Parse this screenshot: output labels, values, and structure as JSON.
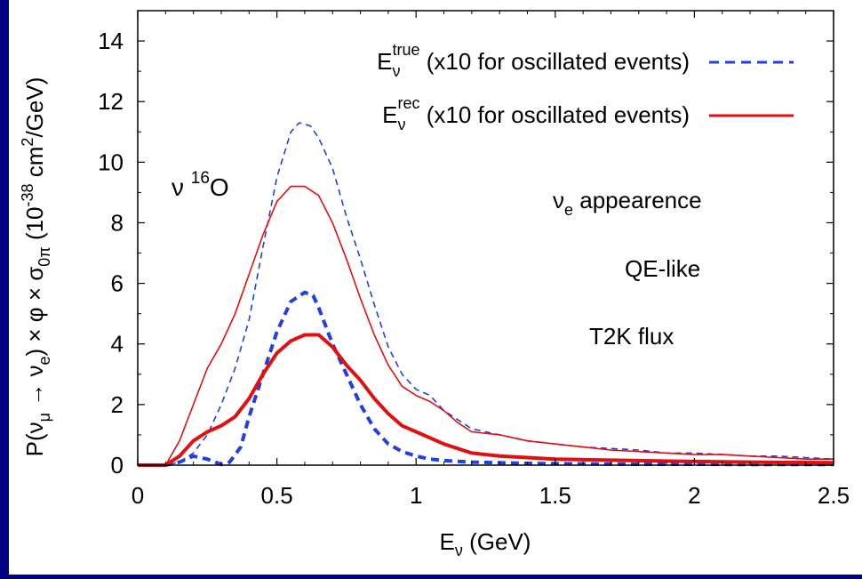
{
  "chart_data": {
    "type": "line",
    "title": "",
    "xlabel_main": "E",
    "xlabel_sub": "ν",
    "xlabel_unit": " (GeV)",
    "ylabel_parts": [
      "P(ν",
      "μ",
      " → ν",
      "e",
      ") × φ × σ",
      "0π",
      " (10",
      "-38",
      " cm",
      "2",
      "/GeV)"
    ],
    "xlim": [
      0,
      2.5
    ],
    "ylim": [
      0,
      15
    ],
    "xticks": [
      0,
      0.5,
      1,
      1.5,
      2,
      2.5
    ],
    "xtick_labels": [
      "0",
      "0.5",
      "1",
      "1.5",
      "2",
      "2.5"
    ],
    "yticks": [
      0,
      2,
      4,
      6,
      8,
      10,
      12,
      14
    ],
    "ytick_labels": [
      "0",
      "2",
      "4",
      "6",
      "8",
      "10",
      "12",
      "14"
    ],
    "grid": false,
    "legend_position": "top-right",
    "legend": [
      {
        "main": "E",
        "sub": "ν",
        "sup": "true",
        "text": " (x10 for oscillated events)",
        "style": "dashed",
        "color": "#2040e0"
      },
      {
        "main": "E",
        "sub": "ν",
        "sup": "rec",
        "text": " (x10 for oscillated events)",
        "style": "solid",
        "color": "#e01010"
      }
    ],
    "annotations": {
      "target": {
        "base": "ν ",
        "sup": "16",
        "rest": "O"
      },
      "appearance": {
        "base": "ν",
        "sub": "e",
        "rest": " appearence"
      },
      "qe": "QE-like",
      "flux": "T2K flux"
    },
    "series": [
      {
        "name": "E_ν^true (x10 for oscillated events)",
        "color": "#2040e0",
        "dash": "dashed",
        "weight": "thin",
        "x": [
          0,
          0.1,
          0.15,
          0.2,
          0.25,
          0.3,
          0.35,
          0.4,
          0.45,
          0.5,
          0.55,
          0.58,
          0.62,
          0.65,
          0.7,
          0.75,
          0.8,
          0.85,
          0.9,
          0.95,
          1.0,
          1.05,
          1.1,
          1.15,
          1.2,
          1.3,
          1.4,
          1.5,
          1.6,
          1.7,
          1.8,
          1.9,
          2.0,
          2.1,
          2.2,
          2.3,
          2.4,
          2.5
        ],
        "y": [
          0,
          0,
          0.1,
          0.4,
          1.0,
          2.0,
          3.2,
          4.8,
          7.2,
          9.5,
          11.0,
          11.3,
          11.2,
          10.8,
          9.8,
          8.2,
          6.8,
          5.3,
          3.9,
          3.0,
          2.5,
          2.3,
          1.8,
          1.5,
          1.2,
          1.0,
          0.8,
          0.7,
          0.6,
          0.55,
          0.5,
          0.4,
          0.4,
          0.35,
          0.3,
          0.3,
          0.25,
          0.2
        ]
      },
      {
        "name": "E_ν^rec (x10 for oscillated events)",
        "color": "#e01010",
        "dash": "solid",
        "weight": "thin",
        "x": [
          0,
          0.1,
          0.15,
          0.2,
          0.25,
          0.3,
          0.35,
          0.4,
          0.45,
          0.5,
          0.55,
          0.6,
          0.65,
          0.7,
          0.75,
          0.8,
          0.85,
          0.9,
          0.95,
          1.0,
          1.05,
          1.1,
          1.15,
          1.2,
          1.3,
          1.4,
          1.5,
          1.6,
          1.7,
          1.8,
          1.9,
          2.0,
          2.1,
          2.2,
          2.3,
          2.4,
          2.5
        ],
        "y": [
          0,
          0,
          0.8,
          2.0,
          3.2,
          4.0,
          5.0,
          6.3,
          7.6,
          8.7,
          9.2,
          9.2,
          8.9,
          8.0,
          6.8,
          5.5,
          4.3,
          3.3,
          2.6,
          2.3,
          2.1,
          1.8,
          1.4,
          1.1,
          1.0,
          0.8,
          0.7,
          0.6,
          0.5,
          0.45,
          0.4,
          0.35,
          0.35,
          0.3,
          0.25,
          0.2,
          0.2
        ]
      },
      {
        "name": "E_ν^true",
        "color": "#2040e0",
        "dash": "dashed",
        "weight": "thick",
        "x": [
          0,
          0.1,
          0.15,
          0.2,
          0.25,
          0.3,
          0.33,
          0.37,
          0.4,
          0.45,
          0.5,
          0.55,
          0.6,
          0.63,
          0.65,
          0.7,
          0.75,
          0.8,
          0.85,
          0.9,
          0.95,
          1.0,
          1.05,
          1.1,
          1.2,
          1.3,
          1.4,
          1.5,
          1.6,
          1.8,
          2.0,
          2.2,
          2.5
        ],
        "y": [
          0,
          0,
          0.1,
          0.3,
          0.2,
          0.02,
          0.1,
          0.6,
          1.6,
          3.0,
          4.4,
          5.4,
          5.7,
          5.6,
          5.2,
          4.0,
          3.0,
          2.0,
          1.2,
          0.7,
          0.45,
          0.3,
          0.2,
          0.15,
          0.1,
          0.08,
          0.06,
          0.05,
          0.04,
          0.03,
          0.03,
          0.02,
          0.02
        ]
      },
      {
        "name": "E_ν^rec",
        "color": "#e01010",
        "dash": "solid",
        "weight": "thick",
        "x": [
          0,
          0.1,
          0.15,
          0.2,
          0.25,
          0.3,
          0.35,
          0.4,
          0.45,
          0.5,
          0.55,
          0.6,
          0.65,
          0.7,
          0.75,
          0.8,
          0.85,
          0.9,
          0.95,
          1.0,
          1.05,
          1.1,
          1.2,
          1.3,
          1.4,
          1.5,
          1.6,
          1.8,
          2.0,
          2.2,
          2.5
        ],
        "y": [
          0,
          0,
          0.3,
          0.8,
          1.1,
          1.3,
          1.6,
          2.2,
          3.0,
          3.7,
          4.1,
          4.3,
          4.3,
          3.9,
          3.3,
          2.8,
          2.2,
          1.7,
          1.3,
          1.1,
          0.9,
          0.7,
          0.4,
          0.3,
          0.25,
          0.2,
          0.18,
          0.15,
          0.12,
          0.1,
          0.08
        ]
      }
    ]
  }
}
